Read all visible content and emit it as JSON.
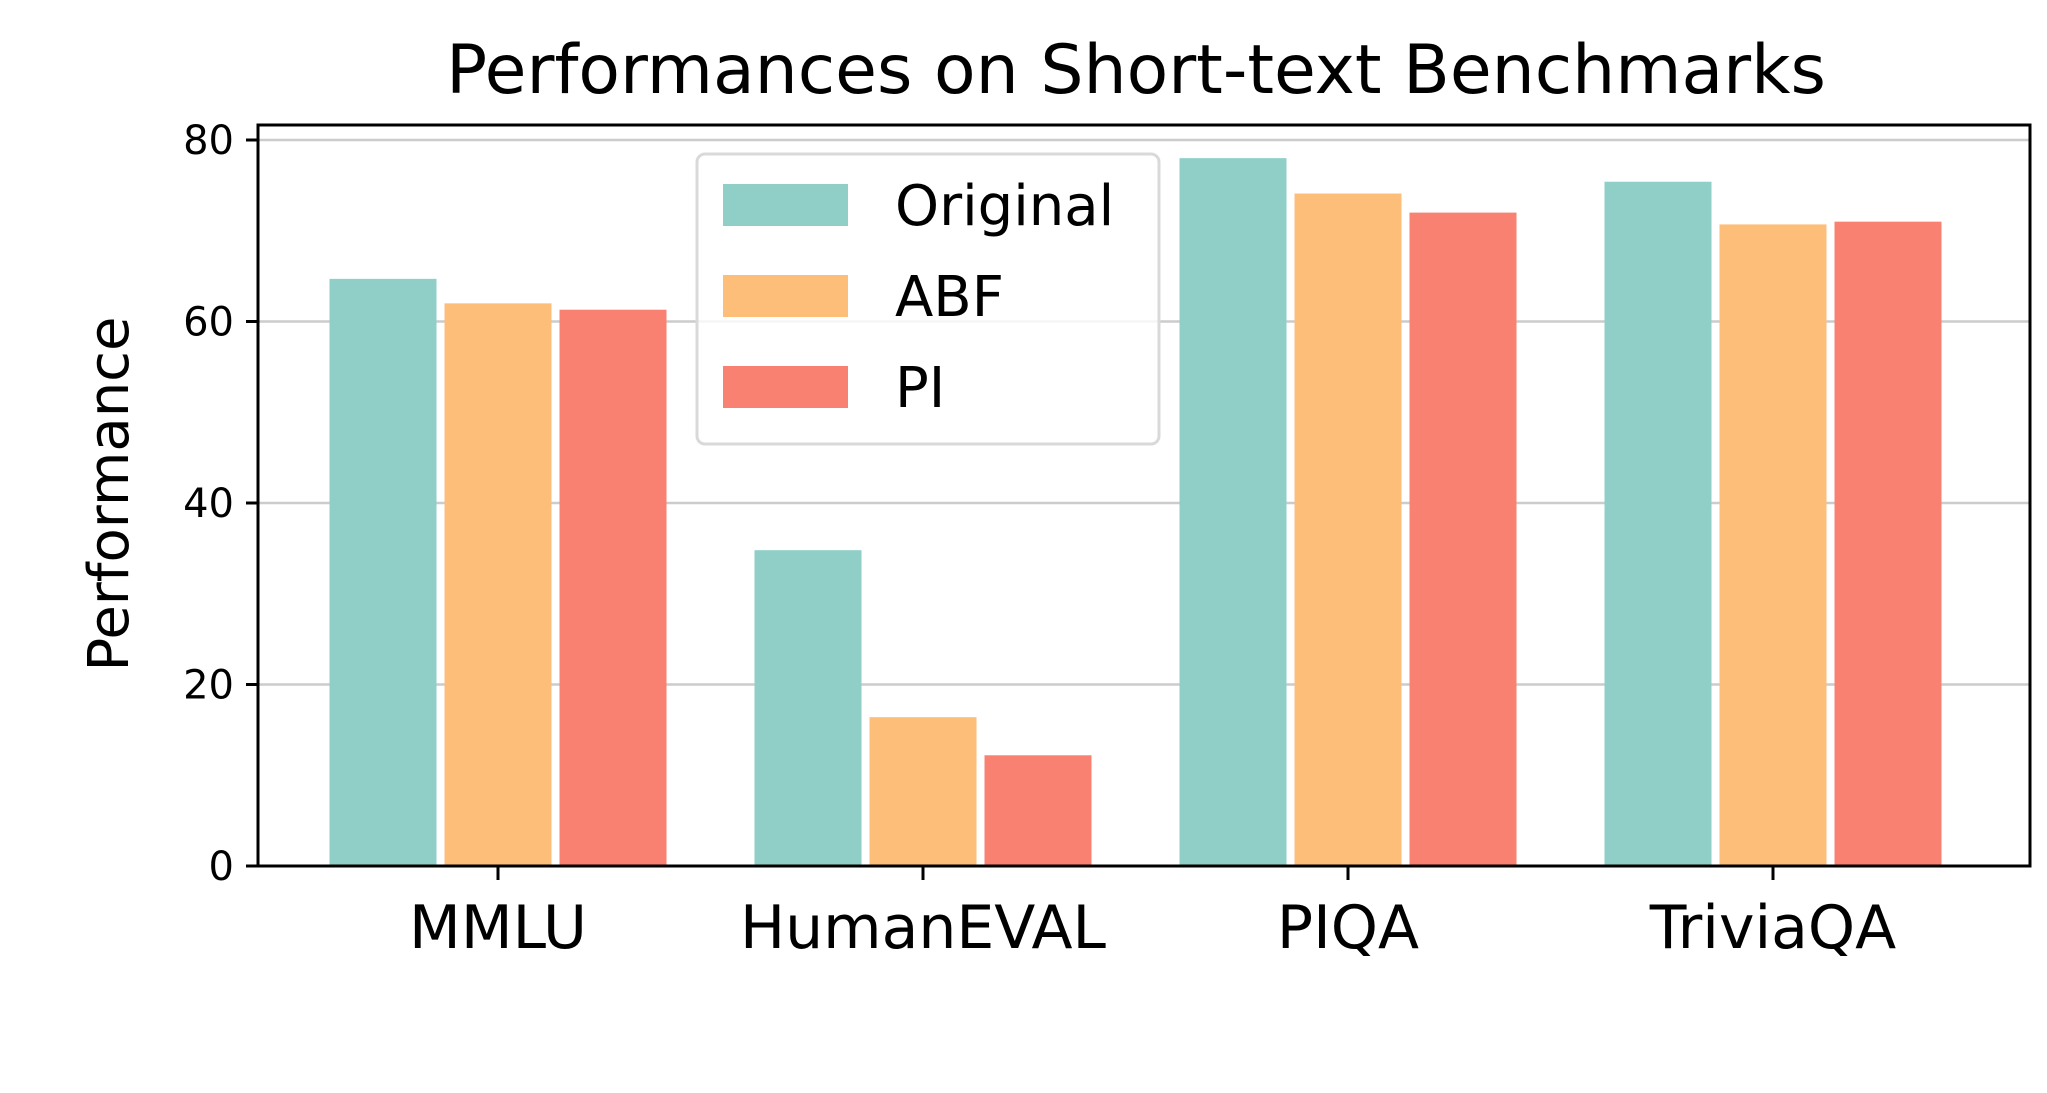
{
  "chart_data": {
    "type": "bar",
    "title": "Performances on Short-text Benchmarks",
    "xlabel": "",
    "ylabel": "Performance",
    "categories": [
      "MMLU",
      "HumanEVAL",
      "PIQA",
      "TriviaQA"
    ],
    "series": [
      {
        "name": "Original",
        "color": "#8fcfc8",
        "values": [
          64.7,
          34.8,
          78.0,
          75.4
        ]
      },
      {
        "name": "ABF",
        "color": "#fdbe79",
        "values": [
          62.0,
          16.4,
          74.1,
          70.7
        ]
      },
      {
        "name": "PI",
        "color": "#f98172",
        "values": [
          61.3,
          12.2,
          72.0,
          71.0
        ]
      }
    ],
    "ylim": [
      0,
      80
    ],
    "yticks": [
      0,
      20,
      40,
      60,
      80
    ],
    "ytick_labels": [
      "0",
      "20",
      "40",
      "60",
      "80"
    ],
    "grid": "horizontal",
    "legend_position": "upper center"
  }
}
